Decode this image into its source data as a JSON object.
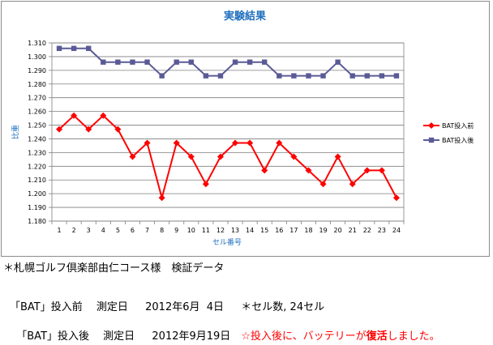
{
  "chart_data": {
    "type": "line",
    "title": "実験結果",
    "xlabel": "セル番号",
    "ylabel": "比重",
    "categories": [
      "1",
      "2",
      "3",
      "4",
      "5",
      "6",
      "7",
      "8",
      "9",
      "10",
      "11",
      "12",
      "13",
      "14",
      "15",
      "16",
      "17",
      "18",
      "19",
      "20",
      "21",
      "22",
      "23",
      "24"
    ],
    "ylim": [
      1.18,
      1.31
    ],
    "yticks": [
      "1.180",
      "1.190",
      "1.200",
      "1.210",
      "1.220",
      "1.230",
      "1.240",
      "1.250",
      "1.260",
      "1.270",
      "1.280",
      "1.290",
      "1.300",
      "1.310"
    ],
    "grid": true,
    "legend_position": "right",
    "series": [
      {
        "name": "BAT投入前",
        "color": "#ff0000",
        "marker": "diamond",
        "values": [
          1.247,
          1.257,
          1.247,
          1.257,
          1.247,
          1.227,
          1.237,
          1.197,
          1.237,
          1.227,
          1.207,
          1.227,
          1.237,
          1.237,
          1.217,
          1.237,
          1.227,
          1.217,
          1.207,
          1.227,
          1.207,
          1.217,
          1.217,
          1.197
        ]
      },
      {
        "name": "BAT投入後",
        "color": "#5a5a96",
        "marker": "square",
        "values": [
          1.306,
          1.306,
          1.306,
          1.296,
          1.296,
          1.296,
          1.296,
          1.286,
          1.296,
          1.296,
          1.286,
          1.286,
          1.296,
          1.296,
          1.296,
          1.286,
          1.286,
          1.286,
          1.286,
          1.296,
          1.286,
          1.286,
          1.286,
          1.286
        ]
      }
    ]
  },
  "notes": {
    "line1": "＊札幌ゴルフ倶楽部由仁コース様　検証データ",
    "line2": "「BAT」投入前　 測定日　  2012年6月  4日　  ＊セル数, 24セル",
    "line3_black": "「BAT」投入後　 測定日　  2012年9月19日　",
    "line3_red_a": "☆投入後に、バッテリーが",
    "line3_red_strong": "復活",
    "line3_red_b": "しました。"
  },
  "colors": {
    "title": "#1f6fbf",
    "axis_label": "#1f6fbf",
    "grid": "#7f7f7f",
    "plot_border": "#808080"
  }
}
